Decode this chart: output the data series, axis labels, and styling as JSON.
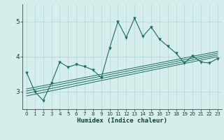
{
  "title": "",
  "xlabel": "Humidex (Indice chaleur)",
  "bg_color": "#d5eeeb",
  "line_color": "#1a6e62",
  "grid_color": "#b8ddd8",
  "xlim": [
    -0.5,
    23.5
  ],
  "ylim": [
    2.5,
    5.5
  ],
  "yticks": [
    3,
    4,
    5
  ],
  "xticks": [
    0,
    1,
    2,
    3,
    4,
    5,
    6,
    7,
    8,
    9,
    10,
    11,
    12,
    13,
    14,
    15,
    16,
    17,
    18,
    19,
    20,
    21,
    22,
    23
  ],
  "main_line": {
    "x": [
      0,
      1,
      2,
      3,
      4,
      5,
      6,
      7,
      8,
      9,
      10,
      11,
      12,
      13,
      14,
      15,
      16,
      17,
      18,
      19,
      20,
      21,
      22,
      23
    ],
    "y": [
      3.55,
      3.0,
      2.75,
      3.25,
      3.85,
      3.7,
      3.78,
      3.72,
      3.62,
      3.4,
      4.25,
      5.0,
      4.55,
      5.1,
      4.58,
      4.85,
      4.5,
      4.3,
      4.1,
      3.82,
      4.02,
      3.85,
      3.82,
      3.95
    ]
  },
  "trend_lines": [
    {
      "x": [
        0,
        23
      ],
      "y": [
        2.88,
        4.0
      ]
    },
    {
      "x": [
        0,
        23
      ],
      "y": [
        2.95,
        4.05
      ]
    },
    {
      "x": [
        0,
        23
      ],
      "y": [
        3.02,
        4.1
      ]
    },
    {
      "x": [
        0,
        23
      ],
      "y": [
        3.08,
        4.15
      ]
    }
  ],
  "marker_indices": [
    0,
    1,
    2,
    3,
    4,
    5,
    6,
    7,
    8,
    9,
    10,
    11,
    12,
    13,
    14,
    15,
    16,
    17,
    18,
    19,
    20,
    21,
    22,
    23
  ]
}
